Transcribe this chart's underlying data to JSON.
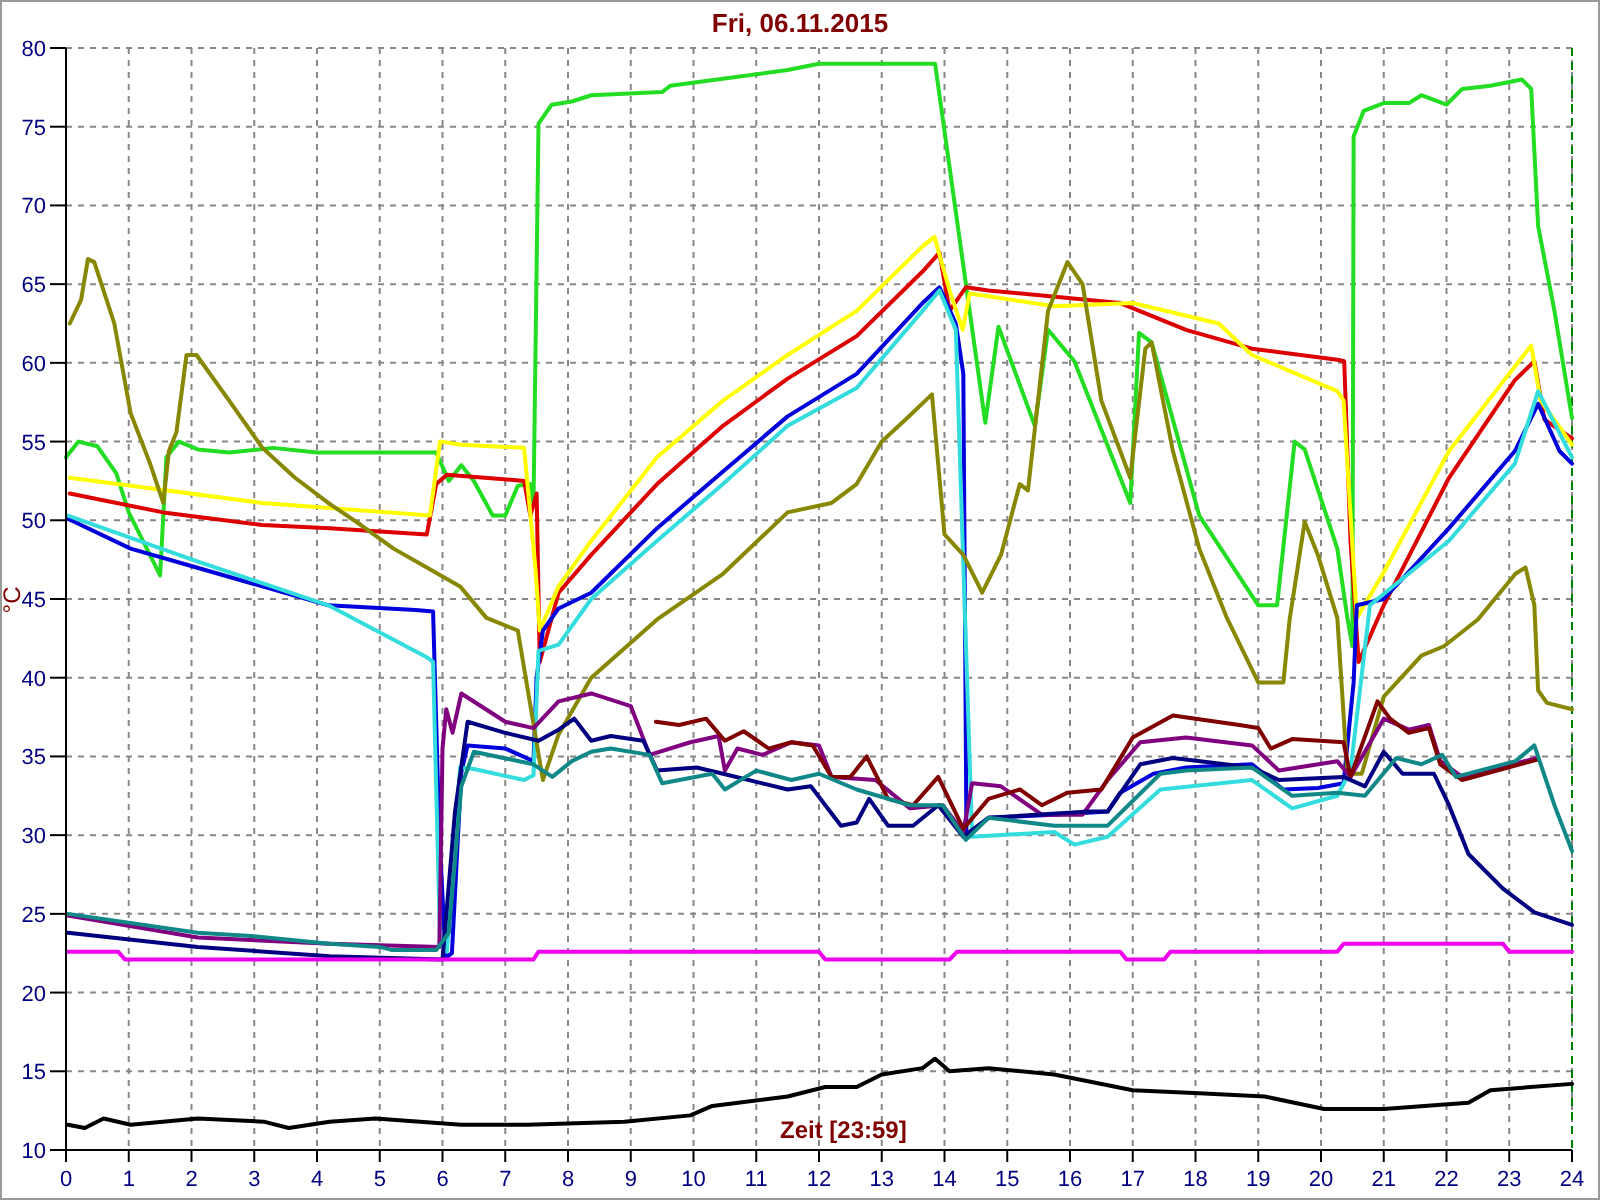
{
  "chart_data": {
    "type": "line",
    "title": "Fri, 06.11.2015",
    "xlabel": "Zeit [23:59]",
    "ylabel": "°C",
    "xlim": [
      0,
      24
    ],
    "ylim": [
      10,
      80
    ],
    "xticks": [
      0,
      1,
      2,
      3,
      4,
      5,
      6,
      7,
      8,
      9,
      10,
      11,
      12,
      13,
      14,
      15,
      16,
      17,
      18,
      19,
      20,
      21,
      22,
      23,
      24
    ],
    "yticks": [
      10,
      15,
      20,
      25,
      30,
      35,
      40,
      45,
      50,
      55,
      60,
      65,
      70,
      75,
      80
    ],
    "grid": true,
    "marker": "none",
    "line_style": "solid",
    "ref_lines": [
      {
        "axis": "x",
        "value": 24,
        "color": "#008000",
        "line_style": "dashed"
      }
    ],
    "series": [
      {
        "color": "#22dd22",
        "x": [
          0,
          0.2,
          0.5,
          0.8,
          1.0,
          1.5,
          1.6,
          1.8,
          2.1,
          2.6,
          3.3,
          4,
          5,
          5.9,
          6.1,
          6.3,
          6.5,
          6.8,
          7.0,
          7.2,
          7.4,
          7.45,
          7.53,
          7.74,
          8.06,
          8.37,
          9.5,
          9.63,
          11.5,
          12,
          13.85,
          14.65,
          14.86,
          15.44,
          15.65,
          16.07,
          16.96,
          17.1,
          17.3,
          18.06,
          19.0,
          19.3,
          19.58,
          19.74,
          20.26,
          20.42,
          20.5,
          20.52,
          20.68,
          21,
          21.4,
          21.6,
          22,
          22.25,
          22.7,
          23.2,
          23.35,
          23.46,
          23.72,
          24
        ],
        "values": [
          54,
          55,
          54.7,
          53,
          50.5,
          46.5,
          54,
          55,
          54.5,
          54.3,
          54.6,
          54.3,
          54.3,
          54.3,
          52.5,
          53.5,
          52.5,
          50.3,
          50.3,
          52.2,
          52.3,
          51,
          75.2,
          76.4,
          76.6,
          77,
          77.2,
          77.6,
          78.6,
          79,
          79,
          56.2,
          62.3,
          56,
          62.1,
          60.1,
          51.1,
          61.9,
          61.3,
          50.3,
          44.6,
          44.6,
          55,
          54.5,
          48.2,
          43.8,
          42,
          74.4,
          76,
          76.5,
          76.5,
          77,
          76.4,
          77.4,
          77.6,
          78,
          77.4,
          68.7,
          63.3,
          56.5
        ]
      },
      {
        "color": "#dd0000",
        "x": [
          0.06,
          1.55,
          3.13,
          4.2,
          5.75,
          5.9,
          6.07,
          7.3,
          7.4,
          7.5,
          7.55,
          7.85,
          8.37,
          9.42,
          10.47,
          11.5,
          12.6,
          13.65,
          13.92,
          14.08,
          14.34,
          14.7,
          16.8,
          17.85,
          18.9,
          20.26,
          20.37,
          20.47,
          20.6,
          21,
          22.04,
          23.09,
          23.4,
          23.56,
          24
        ],
        "values": [
          51.7,
          50.5,
          49.7,
          49.5,
          49.1,
          52.3,
          52.9,
          52.5,
          50.3,
          51.7,
          41,
          45.4,
          47.8,
          52.3,
          56,
          59,
          61.7,
          65.8,
          67,
          63.3,
          64.8,
          64.6,
          63.8,
          62.1,
          60.9,
          60.2,
          60.1,
          48.7,
          41,
          44.6,
          52.7,
          58.9,
          60.1,
          56.4,
          55.2
        ]
      },
      {
        "color": "#ffff00",
        "x": [
          0.06,
          3.13,
          5.8,
          5.96,
          6.3,
          7.3,
          7.48,
          7.55,
          7.85,
          8.37,
          9.42,
          10.47,
          11.5,
          12.6,
          13.65,
          13.84,
          14.08,
          14.29,
          14.4,
          15.75,
          17.0,
          18.37,
          18.9,
          20.26,
          20.36,
          20.57,
          21,
          22.04,
          23.35,
          23.5,
          24
        ],
        "values": [
          52.7,
          51.1,
          50.3,
          55,
          54.8,
          54.6,
          47,
          43,
          45.8,
          48.7,
          54,
          57.6,
          60.5,
          63.3,
          67.4,
          68,
          64.6,
          62.1,
          64.4,
          63.6,
          63.8,
          62.5,
          60.5,
          58.2,
          57.6,
          43.8,
          46.7,
          54.4,
          61.1,
          57.6,
          54.8
        ]
      },
      {
        "color": "#0000dd",
        "x": [
          0.03,
          1.03,
          2.08,
          3.13,
          4.18,
          5.57,
          5.85,
          5.95,
          6.05,
          6.15,
          6.3,
          6.4,
          7.0,
          7.45,
          7.5,
          7.6,
          7.85,
          8.37,
          9.42,
          10.47,
          11.5,
          12.6,
          13.65,
          13.92,
          14.18,
          14.3,
          14.35,
          14.7,
          15.75,
          16.6,
          16.8,
          17.33,
          17.85,
          18.9,
          19.4,
          19.95,
          20.36,
          20.52,
          20.57,
          21,
          22.04,
          23.09,
          23.46,
          23.8,
          24
        ],
        "values": [
          50.1,
          48.2,
          47,
          45.8,
          44.6,
          44.3,
          44.2,
          30,
          22.2,
          22.5,
          34,
          35.7,
          35.5,
          34.7,
          40,
          43,
          44.4,
          45.4,
          49.5,
          53.1,
          56.6,
          59.3,
          63.8,
          64.8,
          62.5,
          59.3,
          29.9,
          31.1,
          31.3,
          31.5,
          32.7,
          33.9,
          34.3,
          34.5,
          32.9,
          33,
          33.3,
          39.7,
          44.6,
          45,
          49.5,
          54.4,
          57.4,
          54.4,
          53.6
        ]
      },
      {
        "color": "#33dddd",
        "x": [
          0.03,
          2.08,
          4.18,
          5.75,
          5.85,
          5.96,
          6.07,
          6.28,
          6.5,
          7.3,
          7.45,
          7.53,
          7.85,
          8.37,
          9.42,
          10.47,
          11.5,
          12.6,
          13.65,
          13.92,
          14.18,
          14.44,
          15.75,
          16.07,
          16.6,
          17.44,
          18.9,
          19.54,
          20.26,
          20.47,
          20.78,
          22.04,
          23.09,
          23.46,
          24
        ],
        "values": [
          50.3,
          47.4,
          44.6,
          41.3,
          41,
          23.3,
          22.6,
          34.3,
          34.2,
          33.5,
          33.8,
          41.7,
          42.1,
          45,
          48.7,
          52.3,
          56,
          58.4,
          63.3,
          64.6,
          62.1,
          29.9,
          30.2,
          29.4,
          29.9,
          32.9,
          33.5,
          31.7,
          32.5,
          34.1,
          44.6,
          48.7,
          53.6,
          58.2,
          54
        ]
      },
      {
        "color": "#888800",
        "x": [
          0.06,
          0.24,
          0.35,
          0.45,
          0.77,
          1.03,
          1.34,
          1.55,
          1.64,
          1.76,
          1.92,
          2.08,
          2.6,
          3.13,
          3.65,
          4.18,
          4.7,
          5.22,
          5.75,
          6.28,
          6.7,
          7.2,
          7.6,
          7.85,
          8.37,
          9.42,
          10.47,
          11.5,
          12.2,
          12.6,
          13.0,
          13.38,
          13.8,
          14.0,
          14.3,
          14.6,
          14.9,
          15.2,
          15.33,
          15.65,
          15.96,
          16.2,
          16.5,
          16.96,
          17.2,
          17.3,
          17.64,
          18.06,
          18.5,
          19.0,
          19.4,
          19.5,
          19.74,
          19.95,
          20.26,
          20.42,
          20.65,
          21,
          21.6,
          21.96,
          22.5,
          23.1,
          23.26,
          23.4,
          23.46,
          23.6,
          24
        ],
        "values": [
          62.5,
          64,
          66.6,
          66.4,
          62.5,
          56.8,
          53.6,
          51.1,
          54.4,
          55.6,
          60.5,
          60.5,
          57.6,
          54.6,
          52.7,
          51.1,
          49.7,
          48.2,
          47,
          45.8,
          43.8,
          43,
          33.5,
          36.4,
          40,
          43.7,
          46.6,
          50.5,
          51.1,
          52.3,
          55,
          56.4,
          58,
          49.1,
          47.8,
          45.4,
          47.8,
          52.3,
          51.9,
          63.3,
          66.4,
          65,
          57.6,
          52.7,
          60.9,
          61.3,
          54.4,
          48.2,
          43.8,
          39.7,
          39.7,
          43.7,
          49.9,
          47.8,
          43.8,
          33.9,
          33.9,
          38.8,
          41.4,
          42,
          43.7,
          46.6,
          47,
          44.6,
          39.2,
          38.4,
          38
        ]
      },
      {
        "color": "#800080",
        "x": [
          0.03,
          2.1,
          4.2,
          5.95,
          6.0,
          6.06,
          6.16,
          6.3,
          7.0,
          7.45,
          7.85,
          8.37,
          9.0,
          9.3,
          9.95,
          10.4,
          10.5,
          10.7,
          11.1,
          11.56,
          12,
          12.2,
          12.9,
          13.45,
          13.97,
          14.3,
          14.44,
          14.9,
          15.55,
          16.2,
          16.6,
          17.12,
          17.85,
          18.9,
          19.33,
          20.26,
          20.47,
          21,
          21.4,
          21.72,
          21.9,
          22.25,
          23.45
        ],
        "values": [
          24.9,
          23.5,
          23.1,
          22.9,
          35.5,
          38,
          36.5,
          39,
          37.2,
          36.8,
          38.5,
          39,
          38.2,
          35.1,
          35.9,
          36.3,
          34.1,
          35.5,
          35.1,
          35.9,
          35.7,
          33.7,
          33.5,
          31.7,
          31.9,
          30.2,
          33.3,
          33.1,
          31.3,
          31.3,
          33.5,
          35.9,
          36.2,
          35.7,
          34.1,
          34.7,
          33.7,
          37.4,
          36.7,
          37,
          34.7,
          33.7,
          34.9
        ]
      },
      {
        "color": "#800000",
        "x": [
          9.4,
          9.77,
          10.2,
          10.5,
          10.8,
          11.2,
          11.56,
          11.9,
          12.2,
          12.5,
          12.76,
          13.1,
          13.5,
          13.9,
          14.3,
          14.7,
          15.2,
          15.55,
          15.96,
          16.5,
          17.0,
          17.64,
          18.7,
          19.0,
          19.2,
          19.54,
          20.36,
          20.47,
          20.9,
          21.1,
          21.4,
          21.72,
          21.9,
          22.25,
          23.45
        ],
        "values": [
          37.2,
          37,
          37.4,
          36,
          36.6,
          35.5,
          35.9,
          35.7,
          33.7,
          33.7,
          35,
          32.3,
          31.9,
          33.7,
          30.4,
          32.3,
          32.9,
          31.9,
          32.7,
          32.9,
          36.2,
          37.6,
          37,
          36.8,
          35.5,
          36.1,
          35.9,
          33.7,
          38.5,
          37.4,
          36.5,
          36.8,
          34.5,
          33.5,
          34.8
        ]
      },
      {
        "color": "#000080",
        "x": [
          0.03,
          2.1,
          4.2,
          6.0,
          6.2,
          6.4,
          7.0,
          7.53,
          7.85,
          8.1,
          8.37,
          8.68,
          9.2,
          9.42,
          10.05,
          10.47,
          11.5,
          11.87,
          12.35,
          12.6,
          12.8,
          13.1,
          13.5,
          13.9,
          14.3,
          14.7,
          16.3,
          16.6,
          17.12,
          17.64,
          18.9,
          19.33,
          20.36,
          20.7,
          21,
          21.3,
          21.8,
          22.04,
          22.35,
          22.9,
          23.4,
          24
        ],
        "values": [
          23.8,
          22.9,
          22.3,
          22.1,
          31.5,
          37.2,
          36.5,
          36,
          36.7,
          37.4,
          36,
          36.3,
          36,
          34.1,
          34.3,
          33.9,
          32.9,
          33.1,
          30.6,
          30.8,
          32.3,
          30.6,
          30.6,
          31.9,
          29.9,
          31.1,
          31.5,
          31.5,
          34.5,
          34.9,
          34.3,
          33.5,
          33.7,
          33.1,
          35.3,
          33.9,
          33.9,
          31.9,
          28.8,
          26.6,
          25.1,
          24.3
        ]
      },
      {
        "color": "#118888",
        "x": [
          0.03,
          2.1,
          2.95,
          4.2,
          5.0,
          5.2,
          5.9,
          6.1,
          6.3,
          6.5,
          7.45,
          7.75,
          8.06,
          8.37,
          8.68,
          9.3,
          9.5,
          10.3,
          10.5,
          11.0,
          11.56,
          12.0,
          12.6,
          13.45,
          13.97,
          14.34,
          14.7,
          15.75,
          16.6,
          17.44,
          17.85,
          18.9,
          19.54,
          20.26,
          20.7,
          21.2,
          21.6,
          21.93,
          22.15,
          23.1,
          23.4,
          23.72,
          24
        ],
        "values": [
          25,
          23.8,
          23.6,
          23.1,
          22.9,
          22.7,
          22.7,
          23.8,
          33.1,
          35.3,
          34.5,
          33.7,
          34.7,
          35.3,
          35.5,
          35.1,
          33.3,
          33.9,
          32.9,
          34.1,
          33.5,
          33.9,
          32.9,
          31.9,
          31.9,
          29.7,
          31.1,
          30.6,
          30.6,
          33.9,
          34.1,
          34.3,
          32.5,
          32.7,
          32.5,
          34.9,
          34.5,
          35.1,
          33.7,
          34.7,
          35.7,
          31.9,
          29
        ]
      },
      {
        "color": "#ee00ee",
        "x": [
          0.03,
          0.83,
          0.94,
          7.45,
          7.53,
          12,
          12.1,
          14.08,
          14.2,
          16.8,
          16.9,
          17.5,
          17.6,
          20.26,
          20.36,
          22.9,
          23.0,
          24
        ],
        "values": [
          22.6,
          22.6,
          22.1,
          22.1,
          22.6,
          22.6,
          22.1,
          22.1,
          22.6,
          22.6,
          22.1,
          22.1,
          22.6,
          22.6,
          23.1,
          23.1,
          22.6,
          22.6
        ]
      },
      {
        "color": "#000000",
        "x": [
          0.03,
          0.3,
          0.6,
          1.03,
          2.1,
          3.15,
          3.55,
          4.2,
          4.93,
          6.3,
          7.35,
          8.9,
          9.95,
          10.3,
          11.5,
          12.1,
          12.6,
          13.0,
          13.65,
          13.85,
          14.08,
          14.7,
          15.75,
          17.0,
          18.06,
          19.1,
          20.05,
          21,
          22.35,
          22.7,
          24
        ],
        "values": [
          11.6,
          11.4,
          12.0,
          11.6,
          12.0,
          11.8,
          11.4,
          11.8,
          12.0,
          11.6,
          11.6,
          11.8,
          12.2,
          12.8,
          13.4,
          14.0,
          14.0,
          14.8,
          15.2,
          15.8,
          15.0,
          15.2,
          14.8,
          13.8,
          13.6,
          13.4,
          12.6,
          12.6,
          13.0,
          13.8,
          14.2
        ]
      }
    ]
  }
}
